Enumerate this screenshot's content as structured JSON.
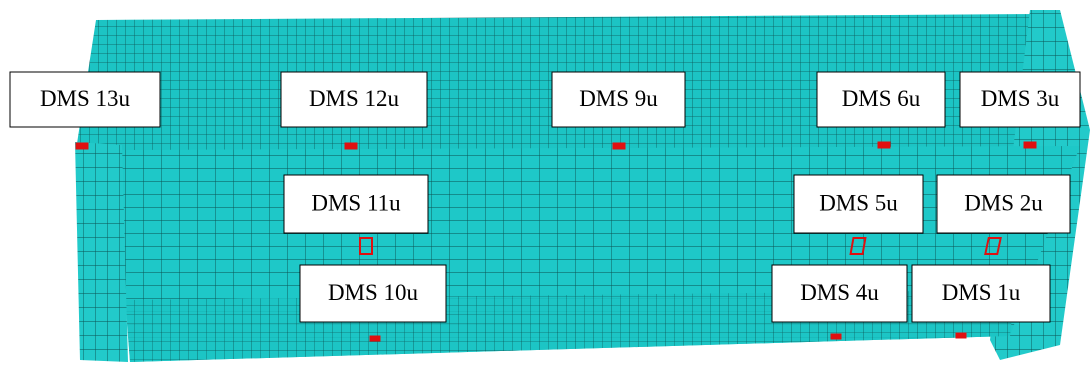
{
  "labels": [
    "DMS 13u",
    "DMS 12u",
    "DMS 9u",
    "DMS 6u",
    "DMS 3u",
    "DMS 11u",
    "DMS 5u",
    "DMS 2u",
    "DMS 10u",
    "DMS 4u",
    "DMS 1u"
  ]
}
